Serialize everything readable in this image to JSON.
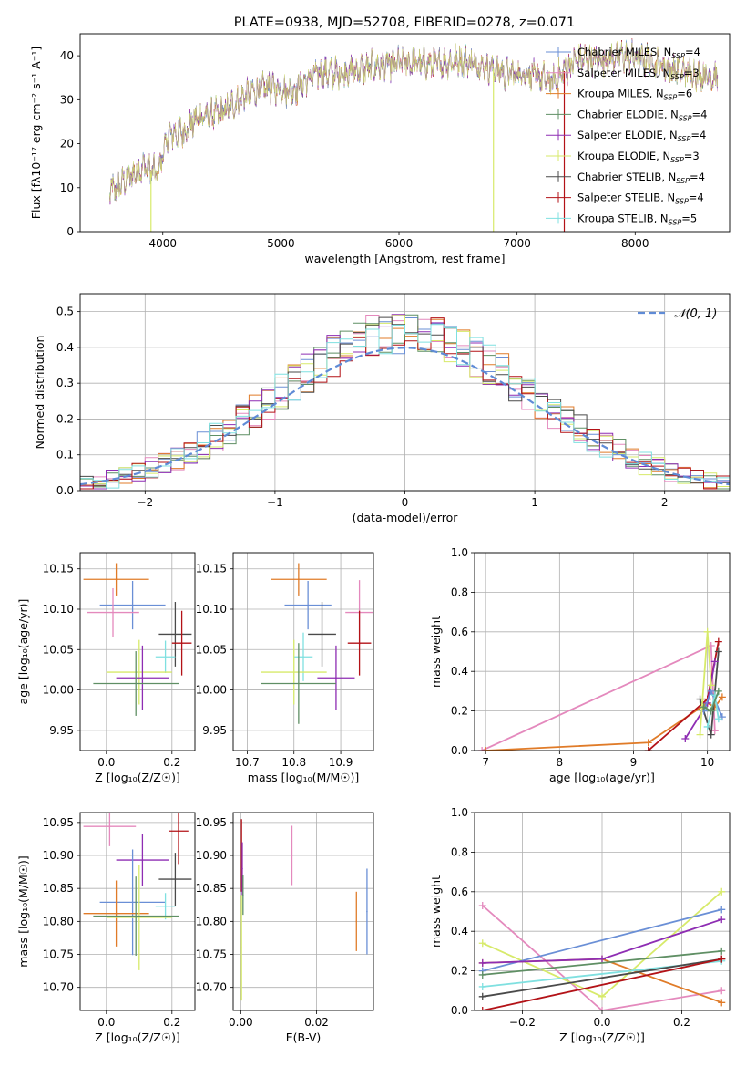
{
  "colors": {
    "chabrier_miles": "#6a8fd6",
    "salpeter_miles": "#e489bd",
    "kroupa_miles": "#e07b28",
    "chabrier_elodie": "#5f8f64",
    "salpeter_elodie": "#8e2db3",
    "kroupa_elodie": "#d7ea6a",
    "chabrier_stelib": "#4a4a4a",
    "salpeter_stelib": "#b31217",
    "kroupa_stelib": "#7fe0e0",
    "normal_curve": "#5f8bd6",
    "grid": "#b0b0b0"
  },
  "chart_data": [
    {
      "id": "spectrum",
      "type": "line",
      "title": "PLATE=0938, MJD=52708, FIBERID=0278, z=0.071",
      "xlabel": "wavelength [Angstrom, rest frame]",
      "ylabel_html": "Flux [f",
      "ylabel": "Flux [fλ10⁻¹⁷ erg cm⁻² s⁻¹ A⁻¹]",
      "xlim": [
        3300,
        8800
      ],
      "ylim": [
        0,
        45
      ],
      "xticks": [
        4000,
        5000,
        6000,
        7000,
        8000
      ],
      "yticks": [
        0,
        10,
        20,
        30,
        40
      ],
      "xtick_labels": [
        "4000",
        "5000",
        "6000",
        "7000",
        "8000"
      ],
      "ytick_labels": [
        "0",
        "10",
        "20",
        "30",
        "40"
      ],
      "grid": false,
      "legend_placement": "top-right",
      "legend": [
        {
          "label": "Chabrier MILES, N",
          "sub": "SSP",
          "tail": "=4",
          "key": "chabrier_miles"
        },
        {
          "label": "Salpeter MILES, N",
          "sub": "SSP",
          "tail": "=3",
          "key": "salpeter_miles"
        },
        {
          "label": "Kroupa MILES, N",
          "sub": "SSP",
          "tail": "=6",
          "key": "kroupa_miles"
        },
        {
          "label": "Chabrier ELODIE, N",
          "sub": "SSP",
          "tail": "=4",
          "key": "chabrier_elodie"
        },
        {
          "label": "Salpeter ELODIE, N",
          "sub": "SSP",
          "tail": "=4",
          "key": "salpeter_elodie"
        },
        {
          "label": "Kroupa ELODIE, N",
          "sub": "SSP",
          "tail": "=3",
          "key": "kroupa_elodie"
        },
        {
          "label": "Chabrier STELIB, N",
          "sub": "SSP",
          "tail": "=4",
          "key": "chabrier_stelib"
        },
        {
          "label": "Salpeter STELIB, N",
          "sub": "SSP",
          "tail": "=4",
          "key": "salpeter_stelib"
        },
        {
          "label": "Kroupa STELIB, N",
          "sub": "SSP",
          "tail": "=5",
          "key": "kroupa_stelib"
        }
      ],
      "continuum": {
        "x": [
          3550,
          3700,
          3850,
          3950,
          4050,
          4200,
          4300,
          4500,
          4700,
          4900,
          5100,
          5300,
          5500,
          5700,
          5900,
          6100,
          6300,
          6500,
          6700,
          6900,
          7100,
          7300,
          7500,
          7700,
          7900,
          8100,
          8300,
          8500,
          8700
        ],
        "y": [
          9,
          12,
          15,
          13,
          22,
          23,
          26,
          27,
          31,
          33,
          32,
          36,
          36,
          37,
          38,
          38.5,
          38,
          39,
          38,
          36,
          36,
          34,
          39,
          39,
          40,
          39,
          37,
          36,
          35
        ]
      },
      "vertical_drops": [
        {
          "x": 3900,
          "key": "kroupa_elodie"
        },
        {
          "x": 6800,
          "key": "kroupa_elodie"
        },
        {
          "x": 7400,
          "key": "salpeter_stelib"
        }
      ]
    },
    {
      "id": "residuals",
      "type": "step",
      "xlabel": "(data-model)/error",
      "ylabel": "Normed distribution",
      "xlim": [
        -2.5,
        2.5
      ],
      "ylim": [
        0,
        0.55
      ],
      "xticks": [
        -2,
        -1,
        0,
        1,
        2
      ],
      "yticks": [
        0,
        0.1,
        0.2,
        0.3,
        0.4,
        0.5
      ],
      "xtick_labels": [
        "−2",
        "−1",
        "0",
        "1",
        "2"
      ],
      "ytick_labels": [
        "0.0",
        "0.1",
        "0.2",
        "0.3",
        "0.4",
        "0.5"
      ],
      "grid": true,
      "legend_placement": "top-right",
      "legend_label": "𝒩(0, 1)",
      "bin_width": 0.1,
      "bin_start": -2.5
    },
    {
      "id": "age_vs_Z",
      "type": "errorbar",
      "xlabel": "Z [log₁₀(Z/Z☉)]",
      "ylabel": "age  [log₁₀(age/yr)]",
      "xlim": [
        -0.08,
        0.27
      ],
      "ylim": [
        9.925,
        10.17
      ],
      "xticks": [
        0,
        0.2
      ],
      "yticks": [
        9.95,
        10.0,
        10.05,
        10.1,
        10.15
      ],
      "xtick_labels": [
        "0.0",
        "0.2"
      ],
      "ytick_labels": [
        "9.95",
        "10.00",
        "10.05",
        "10.10",
        "10.15"
      ],
      "grid": true,
      "points": [
        {
          "key": "kroupa_miles",
          "x": 0.03,
          "xerr": 0.1,
          "y": 10.137,
          "yerr": 0.02
        },
        {
          "key": "chabrier_miles",
          "x": 0.08,
          "xerr": 0.1,
          "y": 10.105,
          "yerr": 0.03
        },
        {
          "key": "salpeter_miles",
          "x": 0.02,
          "xerr": 0.08,
          "y": 10.096,
          "yerr": 0.03
        },
        {
          "key": "chabrier_stelib",
          "x": 0.21,
          "xerr": 0.05,
          "y": 10.069,
          "yerr": 0.04
        },
        {
          "key": "salpeter_stelib",
          "x": 0.23,
          "xerr": 0.03,
          "y": 10.058,
          "yerr": 0.04
        },
        {
          "key": "kroupa_stelib",
          "x": 0.18,
          "xerr": 0.03,
          "y": 10.041,
          "yerr": 0.02
        },
        {
          "key": "kroupa_elodie",
          "x": 0.1,
          "xerr": 0.1,
          "y": 10.022,
          "yerr": 0.04
        },
        {
          "key": "salpeter_elodie",
          "x": 0.11,
          "xerr": 0.08,
          "y": 10.015,
          "yerr": 0.04
        },
        {
          "key": "chabrier_elodie",
          "x": 0.09,
          "xerr": 0.13,
          "y": 10.008,
          "yerr": 0.04
        }
      ]
    },
    {
      "id": "age_vs_mass",
      "type": "errorbar",
      "xlabel": "mass [log₁₀(M/M☉)]",
      "xlim": [
        10.67,
        10.97
      ],
      "ylim": [
        9.925,
        10.17
      ],
      "xticks": [
        10.7,
        10.8,
        10.9
      ],
      "yticks": [
        9.95,
        10.0,
        10.05,
        10.1,
        10.15
      ],
      "xtick_labels": [
        "10.7",
        "10.8",
        "10.9"
      ],
      "ytick_labels": [
        "9.95",
        "10.00",
        "10.05",
        "10.10",
        "10.15"
      ],
      "grid": true,
      "points": [
        {
          "key": "kroupa_miles",
          "x": 10.81,
          "xerr": 0.06,
          "y": 10.137,
          "yerr": 0.02
        },
        {
          "key": "chabrier_miles",
          "x": 10.83,
          "xerr": 0.05,
          "y": 10.105,
          "yerr": 0.03
        },
        {
          "key": "salpeter_miles",
          "x": 10.94,
          "xerr": 0.03,
          "y": 10.096,
          "yerr": 0.04
        },
        {
          "key": "chabrier_stelib",
          "x": 10.86,
          "xerr": 0.03,
          "y": 10.069,
          "yerr": 0.04
        },
        {
          "key": "salpeter_stelib",
          "x": 10.94,
          "xerr": 0.025,
          "y": 10.058,
          "yerr": 0.04
        },
        {
          "key": "kroupa_stelib",
          "x": 10.82,
          "xerr": 0.02,
          "y": 10.041,
          "yerr": 0.03
        },
        {
          "key": "kroupa_elodie",
          "x": 10.8,
          "xerr": 0.07,
          "y": 10.022,
          "yerr": 0.04
        },
        {
          "key": "salpeter_elodie",
          "x": 10.89,
          "xerr": 0.04,
          "y": 10.015,
          "yerr": 0.04
        },
        {
          "key": "chabrier_elodie",
          "x": 10.81,
          "xerr": 0.08,
          "y": 10.008,
          "yerr": 0.05
        }
      ]
    },
    {
      "id": "weight_vs_age",
      "type": "line",
      "xlabel": "age  [log₁₀(age/yr)]",
      "ylabel": "mass weight",
      "xlim": [
        6.85,
        10.3
      ],
      "ylim": [
        0,
        1
      ],
      "xticks": [
        7,
        8,
        9,
        10
      ],
      "yticks": [
        0,
        0.2,
        0.4,
        0.6,
        0.8,
        1.0
      ],
      "xtick_labels": [
        "7",
        "8",
        "9",
        "10"
      ],
      "ytick_labels": [
        "0.0",
        "0.2",
        "0.4",
        "0.6",
        "0.8",
        "1.0"
      ],
      "grid": true,
      "series": [
        {
          "key": "salpeter_miles",
          "x": [
            6.95,
            10.05,
            10.1
          ],
          "y": [
            0.0,
            0.53,
            0.1
          ]
        },
        {
          "key": "kroupa_miles",
          "x": [
            7.0,
            9.2,
            10.0,
            10.1,
            10.2
          ],
          "y": [
            0.0,
            0.04,
            0.24,
            0.22,
            0.27
          ]
        },
        {
          "key": "salpeter_stelib",
          "x": [
            9.2,
            10.0,
            10.15
          ],
          "y": [
            0.0,
            0.26,
            0.55
          ]
        },
        {
          "key": "chabrier_stelib",
          "x": [
            9.9,
            10.05,
            10.15
          ],
          "y": [
            0.26,
            0.08,
            0.5
          ]
        },
        {
          "key": "salpeter_elodie",
          "x": [
            9.7,
            10.0,
            10.1
          ],
          "y": [
            0.06,
            0.24,
            0.45
          ]
        },
        {
          "key": "chabrier_miles",
          "x": [
            9.95,
            10.05,
            10.2
          ],
          "y": [
            0.2,
            0.3,
            0.17
          ]
        },
        {
          "key": "kroupa_elodie",
          "x": [
            9.9,
            10.0,
            10.05
          ],
          "y": [
            0.08,
            0.6,
            0.33
          ]
        },
        {
          "key": "kroupa_stelib",
          "x": [
            10.0,
            10.1,
            10.15
          ],
          "y": [
            0.12,
            0.28,
            0.16
          ]
        },
        {
          "key": "chabrier_elodie",
          "x": [
            9.95,
            10.05,
            10.15
          ],
          "y": [
            0.22,
            0.2,
            0.3
          ]
        }
      ]
    },
    {
      "id": "mass_vs_Z",
      "type": "errorbar",
      "xlabel": "Z [log₁₀(Z/Z☉)]",
      "ylabel": "mass [log₁₀(M/M☉)]",
      "xlim": [
        -0.08,
        0.27
      ],
      "ylim": [
        10.665,
        10.965
      ],
      "xticks": [
        0,
        0.2
      ],
      "yticks": [
        10.7,
        10.75,
        10.8,
        10.85,
        10.9,
        10.95
      ],
      "xtick_labels": [
        "0.0",
        "0.2"
      ],
      "ytick_labels": [
        "10.70",
        "10.75",
        "10.80",
        "10.85",
        "10.90",
        "10.95"
      ],
      "grid": true,
      "points": [
        {
          "key": "salpeter_miles",
          "x": 0.01,
          "xerr": 0.08,
          "y": 10.944,
          "yerr": 0.03
        },
        {
          "key": "salpeter_stelib",
          "x": 0.22,
          "xerr": 0.03,
          "y": 10.937,
          "yerr": 0.05
        },
        {
          "key": "salpeter_elodie",
          "x": 0.11,
          "xerr": 0.08,
          "y": 10.893,
          "yerr": 0.04
        },
        {
          "key": "chabrier_stelib",
          "x": 0.21,
          "xerr": 0.05,
          "y": 10.864,
          "yerr": 0.04
        },
        {
          "key": "chabrier_miles",
          "x": 0.08,
          "xerr": 0.1,
          "y": 10.829,
          "yerr": 0.08
        },
        {
          "key": "kroupa_stelib",
          "x": 0.18,
          "xerr": 0.03,
          "y": 10.823,
          "yerr": 0.02
        },
        {
          "key": "kroupa_miles",
          "x": 0.03,
          "xerr": 0.1,
          "y": 10.812,
          "yerr": 0.05
        },
        {
          "key": "kroupa_elodie",
          "x": 0.1,
          "xerr": 0.1,
          "y": 10.806,
          "yerr": 0.08
        },
        {
          "key": "chabrier_elodie",
          "x": 0.09,
          "xerr": 0.13,
          "y": 10.808,
          "yerr": 0.06
        }
      ]
    },
    {
      "id": "mass_vs_EBV",
      "type": "errorbar",
      "xlabel": "E(B-V)",
      "xlim": [
        -0.002,
        0.035
      ],
      "ylim": [
        10.665,
        10.965
      ],
      "xticks": [
        0,
        0.02
      ],
      "yticks": [
        10.7,
        10.75,
        10.8,
        10.85,
        10.9,
        10.95
      ],
      "xtick_labels": [
        "0.00",
        "0.02"
      ],
      "ytick_labels": [
        "10.70",
        "10.75",
        "10.80",
        "10.85",
        "10.90",
        "10.95"
      ],
      "grid": true,
      "points": [
        {
          "key": "salpeter_stelib",
          "x": 0.0002,
          "xerr": 0,
          "y": 10.9,
          "yerr": 0.055
        },
        {
          "key": "salpeter_elodie",
          "x": 0.0004,
          "xerr": 0,
          "y": 10.88,
          "yerr": 0.04
        },
        {
          "key": "chabrier_elodie",
          "x": 0.0006,
          "xerr": 0,
          "y": 10.84,
          "yerr": 0.03
        },
        {
          "key": "kroupa_elodie",
          "x": 0.0002,
          "xerr": 0,
          "y": 10.76,
          "yerr": 0.08
        },
        {
          "key": "salpeter_miles",
          "x": 0.0135,
          "xerr": 0,
          "y": 10.9,
          "yerr": 0.045
        },
        {
          "key": "kroupa_miles",
          "x": 0.0305,
          "xerr": 0,
          "y": 10.8,
          "yerr": 0.045
        },
        {
          "key": "chabrier_miles",
          "x": 0.0333,
          "xerr": 0,
          "y": 10.815,
          "yerr": 0.065
        }
      ]
    },
    {
      "id": "weight_vs_Z",
      "type": "line",
      "xlabel": "Z [log₁₀(Z/Z☉)]",
      "ylabel": "mass weight",
      "xlim": [
        -0.32,
        0.32
      ],
      "ylim": [
        0,
        1
      ],
      "xticks": [
        -0.2,
        0,
        0.2
      ],
      "yticks": [
        0,
        0.2,
        0.4,
        0.6,
        0.8,
        1.0
      ],
      "xtick_labels": [
        "−0.2",
        "0.0",
        "0.2"
      ],
      "ytick_labels": [
        "0.0",
        "0.2",
        "0.4",
        "0.6",
        "0.8",
        "1.0"
      ],
      "grid": true,
      "series": [
        {
          "key": "salpeter_miles",
          "x": [
            -0.3,
            0.0,
            0.3
          ],
          "y": [
            0.53,
            0.0,
            0.1
          ]
        },
        {
          "key": "kroupa_miles",
          "x": [
            -0.3,
            0.0,
            0.3
          ],
          "y": [
            0.24,
            0.26,
            0.04
          ]
        },
        {
          "key": "kroupa_elodie",
          "x": [
            -0.3,
            0.0,
            0.3
          ],
          "y": [
            0.34,
            0.07,
            0.6
          ]
        },
        {
          "key": "chabrier_miles",
          "x": [
            -0.3,
            0.3
          ],
          "y": [
            0.2,
            0.51
          ]
        },
        {
          "key": "salpeter_elodie",
          "x": [
            -0.3,
            0.0,
            0.3
          ],
          "y": [
            0.24,
            0.26,
            0.46
          ]
        },
        {
          "key": "chabrier_elodie",
          "x": [
            -0.3,
            0.3
          ],
          "y": [
            0.18,
            0.3
          ]
        },
        {
          "key": "kroupa_stelib",
          "x": [
            -0.3,
            0.3
          ],
          "y": [
            0.12,
            0.25
          ]
        },
        {
          "key": "chabrier_stelib",
          "x": [
            -0.3,
            0.3
          ],
          "y": [
            0.07,
            0.26
          ]
        },
        {
          "key": "salpeter_stelib",
          "x": [
            -0.3,
            0.3
          ],
          "y": [
            0.0,
            0.26
          ]
        }
      ]
    }
  ]
}
